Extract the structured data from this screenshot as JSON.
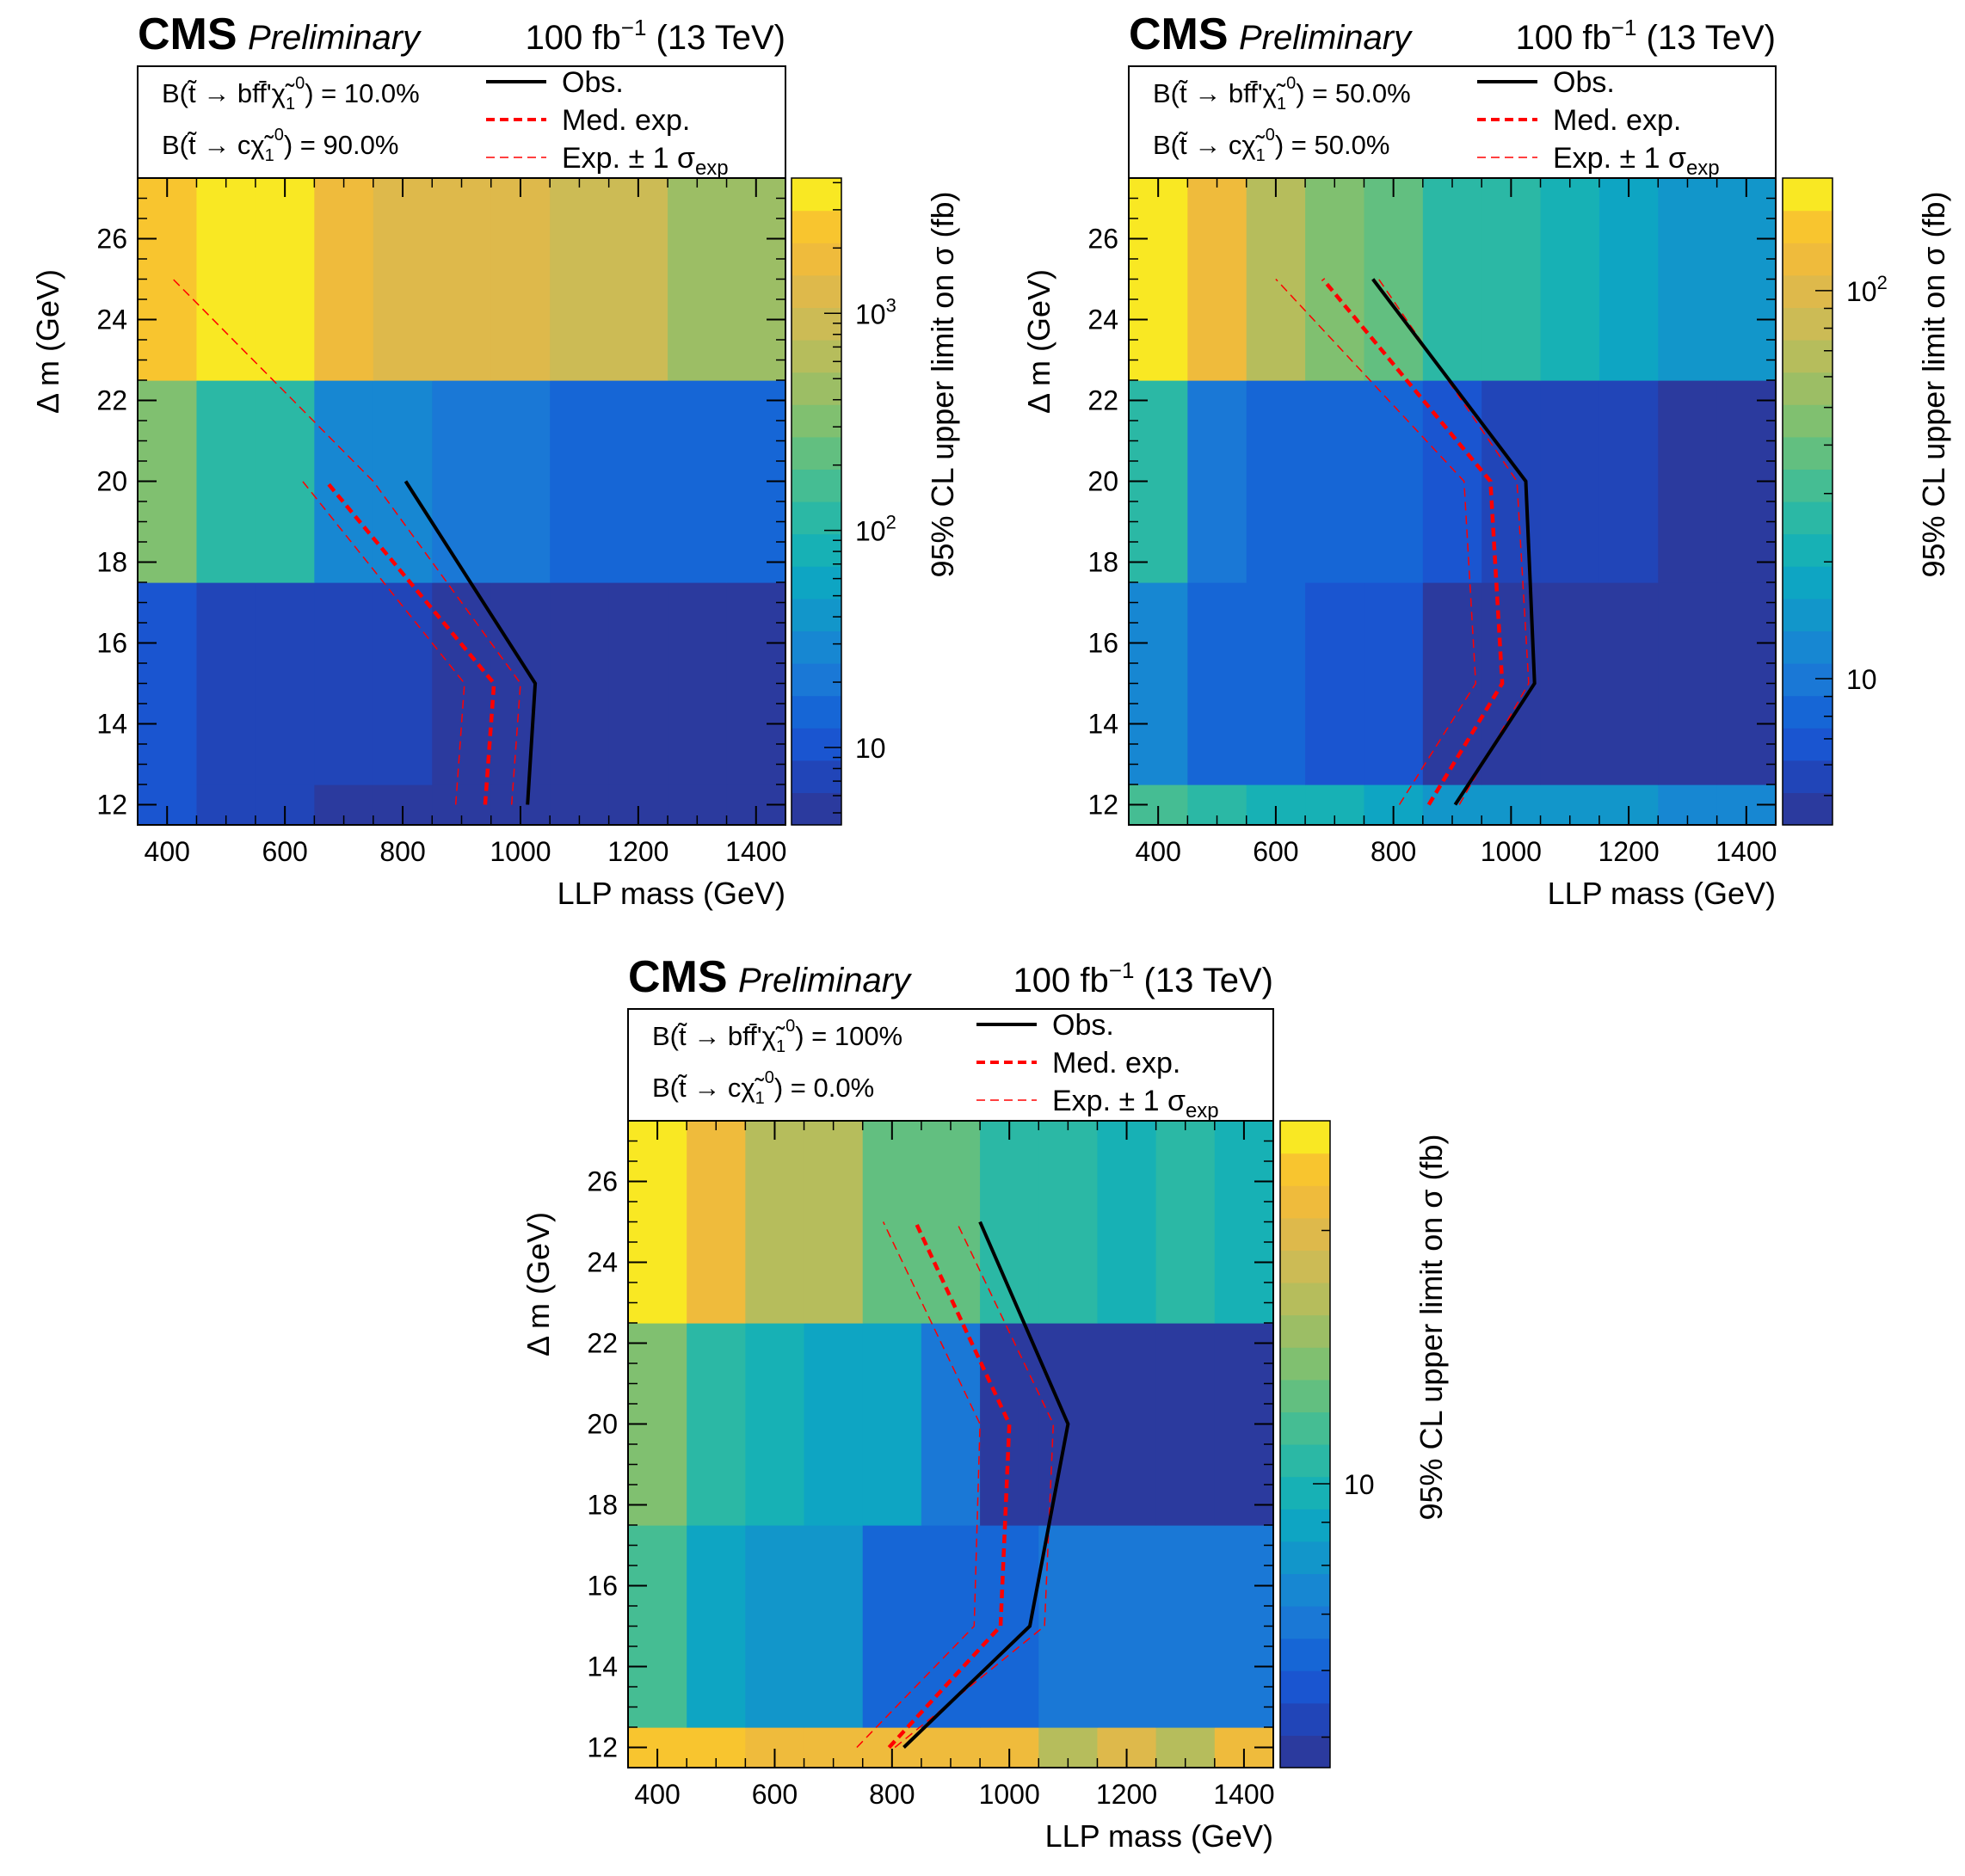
{
  "chart_data": [
    {
      "type": "heatmap",
      "title": {
        "experiment": "CMS",
        "status": "Preliminary",
        "lumi": "100 fb",
        "lumi_exp": "−1",
        "energy": "(13 TeV)"
      },
      "branching": {
        "b_label": "B(t̃ → bff̄'χ̃",
        "b_value": ") = 10.0%",
        "c_label": "B(t̃ → cχ̃",
        "c_value": ") = 90.0%"
      },
      "legend": {
        "obs": "Obs.",
        "med": "Med. exp.",
        "sig": "Exp. ± 1 σ",
        "sig_sub": "exp"
      },
      "xlabel": "LLP mass (GeV)",
      "ylabel": "Δ m (GeV)",
      "zlabel": "95% CL upper limit on σ (fb)",
      "xlim": [
        350,
        1450
      ],
      "ylim": [
        11.5,
        27.5
      ],
      "xticks": [
        "400",
        "600",
        "800",
        "1000",
        "1200",
        "1400"
      ],
      "yticks": [
        "12",
        "14",
        "16",
        "18",
        "20",
        "22",
        "24",
        "26"
      ],
      "zlim": [
        4.4,
        4200
      ],
      "zticks": [
        {
          "value": 10,
          "base": "10",
          "exp": ""
        },
        {
          "value": 100,
          "base": "10",
          "exp": "2"
        },
        {
          "value": 1000,
          "base": "10",
          "exp": "3"
        }
      ],
      "x_edges": [
        350,
        450,
        550,
        650,
        750,
        850,
        950,
        1050,
        1150,
        1250,
        1350,
        1450
      ],
      "y_edges": [
        11.5,
        12.5,
        17.5,
        22.5,
        27.5
      ],
      "z": [
        [
          12,
          7,
          7,
          6,
          6,
          6,
          6,
          6,
          6,
          5,
          5
        ],
        [
          12,
          8,
          8,
          7,
          7,
          5,
          5,
          5,
          5,
          6,
          5
        ],
        [
          300,
          120,
          100,
          25,
          25,
          20,
          20,
          15,
          15,
          15,
          15
        ],
        [
          2200,
          5000,
          5000,
          1600,
          1400,
          1100,
          1100,
          800,
          800,
          500,
          500
        ]
      ],
      "obs": {
        "x": [
          1012,
          1025,
          805
        ],
        "y": [
          12,
          15,
          20
        ]
      },
      "med": {
        "x": [
          940,
          955,
          670
        ],
        "y": [
          12,
          15,
          20
        ]
      },
      "sig_up": {
        "x": [
          985,
          1000,
          750,
          410
        ],
        "y": [
          12,
          15,
          20,
          25
        ]
      },
      "sig_down": {
        "x": [
          890,
          905,
          630
        ],
        "y": [
          12,
          15,
          20
        ]
      }
    },
    {
      "type": "heatmap",
      "title": {
        "experiment": "CMS",
        "status": "Preliminary",
        "lumi": "100 fb",
        "lumi_exp": "−1",
        "energy": "(13 TeV)"
      },
      "branching": {
        "b_label": "B(t̃ → bff̄'χ̃",
        "b_value": ") = 50.0%",
        "c_label": "B(t̃ → cχ̃",
        "c_value": ") = 50.0%"
      },
      "legend": {
        "obs": "Obs.",
        "med": "Med. exp.",
        "sig": "Exp. ± 1 σ",
        "sig_sub": "exp"
      },
      "xlabel": "LLP mass (GeV)",
      "ylabel": "Δ m (GeV)",
      "zlabel": "95% CL upper limit on σ (fb)",
      "xlim": [
        350,
        1450
      ],
      "ylim": [
        11.5,
        27.5
      ],
      "xticks": [
        "400",
        "600",
        "800",
        "1000",
        "1200",
        "1400"
      ],
      "yticks": [
        "12",
        "14",
        "16",
        "18",
        "20",
        "22",
        "24",
        "26"
      ],
      "zlim": [
        4.2,
        195
      ],
      "zticks": [
        {
          "value": 10,
          "base": "10",
          "exp": ""
        },
        {
          "value": 100,
          "base": "10",
          "exp": "2"
        }
      ],
      "x_edges": [
        350,
        450,
        550,
        650,
        750,
        850,
        950,
        1050,
        1150,
        1250,
        1350,
        1450
      ],
      "y_edges": [
        11.5,
        12.5,
        17.5,
        22.5,
        27.5
      ],
      "z": [
        [
          30,
          25,
          20,
          20,
          18,
          16,
          16,
          14,
          14,
          13,
          13
        ],
        [
          11,
          9,
          9,
          7,
          7,
          5,
          5,
          5,
          5,
          5,
          5
        ],
        [
          26,
          10,
          9,
          8,
          8,
          7,
          6,
          6,
          6,
          5,
          5
        ],
        [
          195,
          115,
          70,
          45,
          35,
          27,
          25,
          20,
          18,
          15,
          15
        ]
      ],
      "obs": {
        "x": [
          905,
          1040,
          1025,
          765
        ],
        "y": [
          12,
          15,
          20,
          25
        ]
      },
      "med": {
        "x": [
          860,
          985,
          965,
          680
        ],
        "y": [
          12,
          15,
          20,
          25
        ]
      },
      "sig_up": {
        "x": [
          912,
          1030,
          1010,
          775
        ],
        "y": [
          12,
          15,
          20,
          25
        ]
      },
      "sig_down": {
        "x": [
          810,
          940,
          920,
          600
        ],
        "y": [
          12,
          15,
          20,
          25
        ]
      }
    },
    {
      "type": "heatmap",
      "title": {
        "experiment": "CMS",
        "status": "Preliminary",
        "lumi": "100 fb",
        "lumi_exp": "−1",
        "energy": "(13 TeV)"
      },
      "branching": {
        "b_label": "B(t̃ → bff̄'χ̃",
        "b_value": ") = 100%",
        "c_label": "B(t̃ → cχ̃",
        "c_value": ") = 0.0%"
      },
      "legend": {
        "obs": "Obs.",
        "med": "Med. exp.",
        "sig": "Exp. ± 1 σ",
        "sig_sub": "exp"
      },
      "xlabel": "LLP mass (GeV)",
      "ylabel": "Δ m (GeV)",
      "zlabel": "95% CL upper limit on σ (fb)",
      "xlim": [
        350,
        1450
      ],
      "ylim": [
        11.5,
        27.5
      ],
      "xticks": [
        "400",
        "600",
        "800",
        "1000",
        "1200",
        "1400"
      ],
      "yticks": [
        "12",
        "14",
        "16",
        "18",
        "20",
        "22",
        "24",
        "26"
      ],
      "zlim": [
        4.6,
        27
      ],
      "zticks": [
        {
          "value": 10,
          "base": "10",
          "exp": ""
        }
      ],
      "x_edges": [
        350,
        450,
        550,
        650,
        750,
        850,
        950,
        1050,
        1150,
        1250,
        1350,
        1450
      ],
      "y_edges": [
        11.5,
        12.5,
        17.5,
        22.5,
        27.5
      ],
      "z": [
        [
          23,
          23,
          21,
          21,
          21,
          21,
          21,
          16,
          20,
          16,
          21
        ],
        [
          12,
          9,
          8,
          8,
          6,
          6,
          6,
          7,
          7,
          7,
          7
        ],
        [
          14,
          11,
          10,
          9,
          9,
          7,
          5,
          5,
          5,
          5,
          5
        ],
        [
          27,
          22,
          16,
          16,
          13,
          13,
          11,
          11,
          10,
          11,
          10
        ]
      ],
      "obs": {
        "x": [
          820,
          1035,
          1100,
          950
        ],
        "y": [
          12,
          15,
          20,
          25
        ]
      },
      "med": {
        "x": [
          795,
          985,
          1000,
          840
        ],
        "y": [
          12,
          15,
          20,
          25
        ]
      },
      "sig_up": {
        "x": [
          805,
          1060,
          1075,
          910
        ],
        "y": [
          12,
          15,
          20,
          25
        ]
      },
      "sig_down": {
        "x": [
          740,
          940,
          950,
          785
        ],
        "y": [
          12,
          15,
          20,
          25
        ]
      }
    }
  ]
}
